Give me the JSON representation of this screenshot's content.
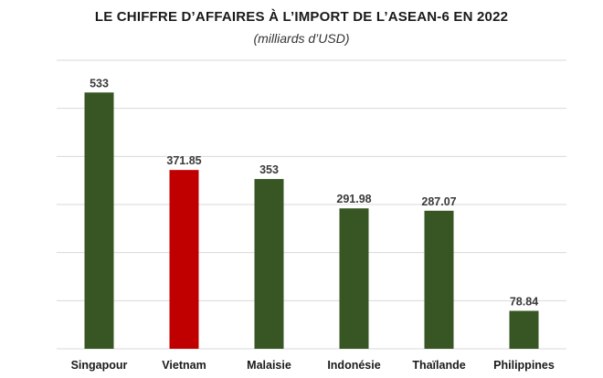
{
  "chart_data": {
    "type": "bar",
    "title": "LE CHIFFRE D’AFFAIRES À L’IMPORT DE L’ASEAN-6 EN 2022",
    "subtitle": "(milliards d’USD)",
    "categories": [
      "Singapour",
      "Vietnam",
      "Malaisie",
      "Indonésie",
      "Thaïlande",
      "Philippines"
    ],
    "values": [
      533,
      371.85,
      353,
      291.98,
      287.07,
      78.84
    ],
    "value_labels": [
      "533",
      "371.85",
      "353",
      "291.98",
      "287.07",
      "78.84"
    ],
    "colors": [
      "#375623",
      "#c00000",
      "#375623",
      "#375623",
      "#375623",
      "#375623"
    ],
    "ylim": [
      0,
      600
    ],
    "grid": true,
    "legend": "none",
    "xlabel": "",
    "ylabel": ""
  }
}
